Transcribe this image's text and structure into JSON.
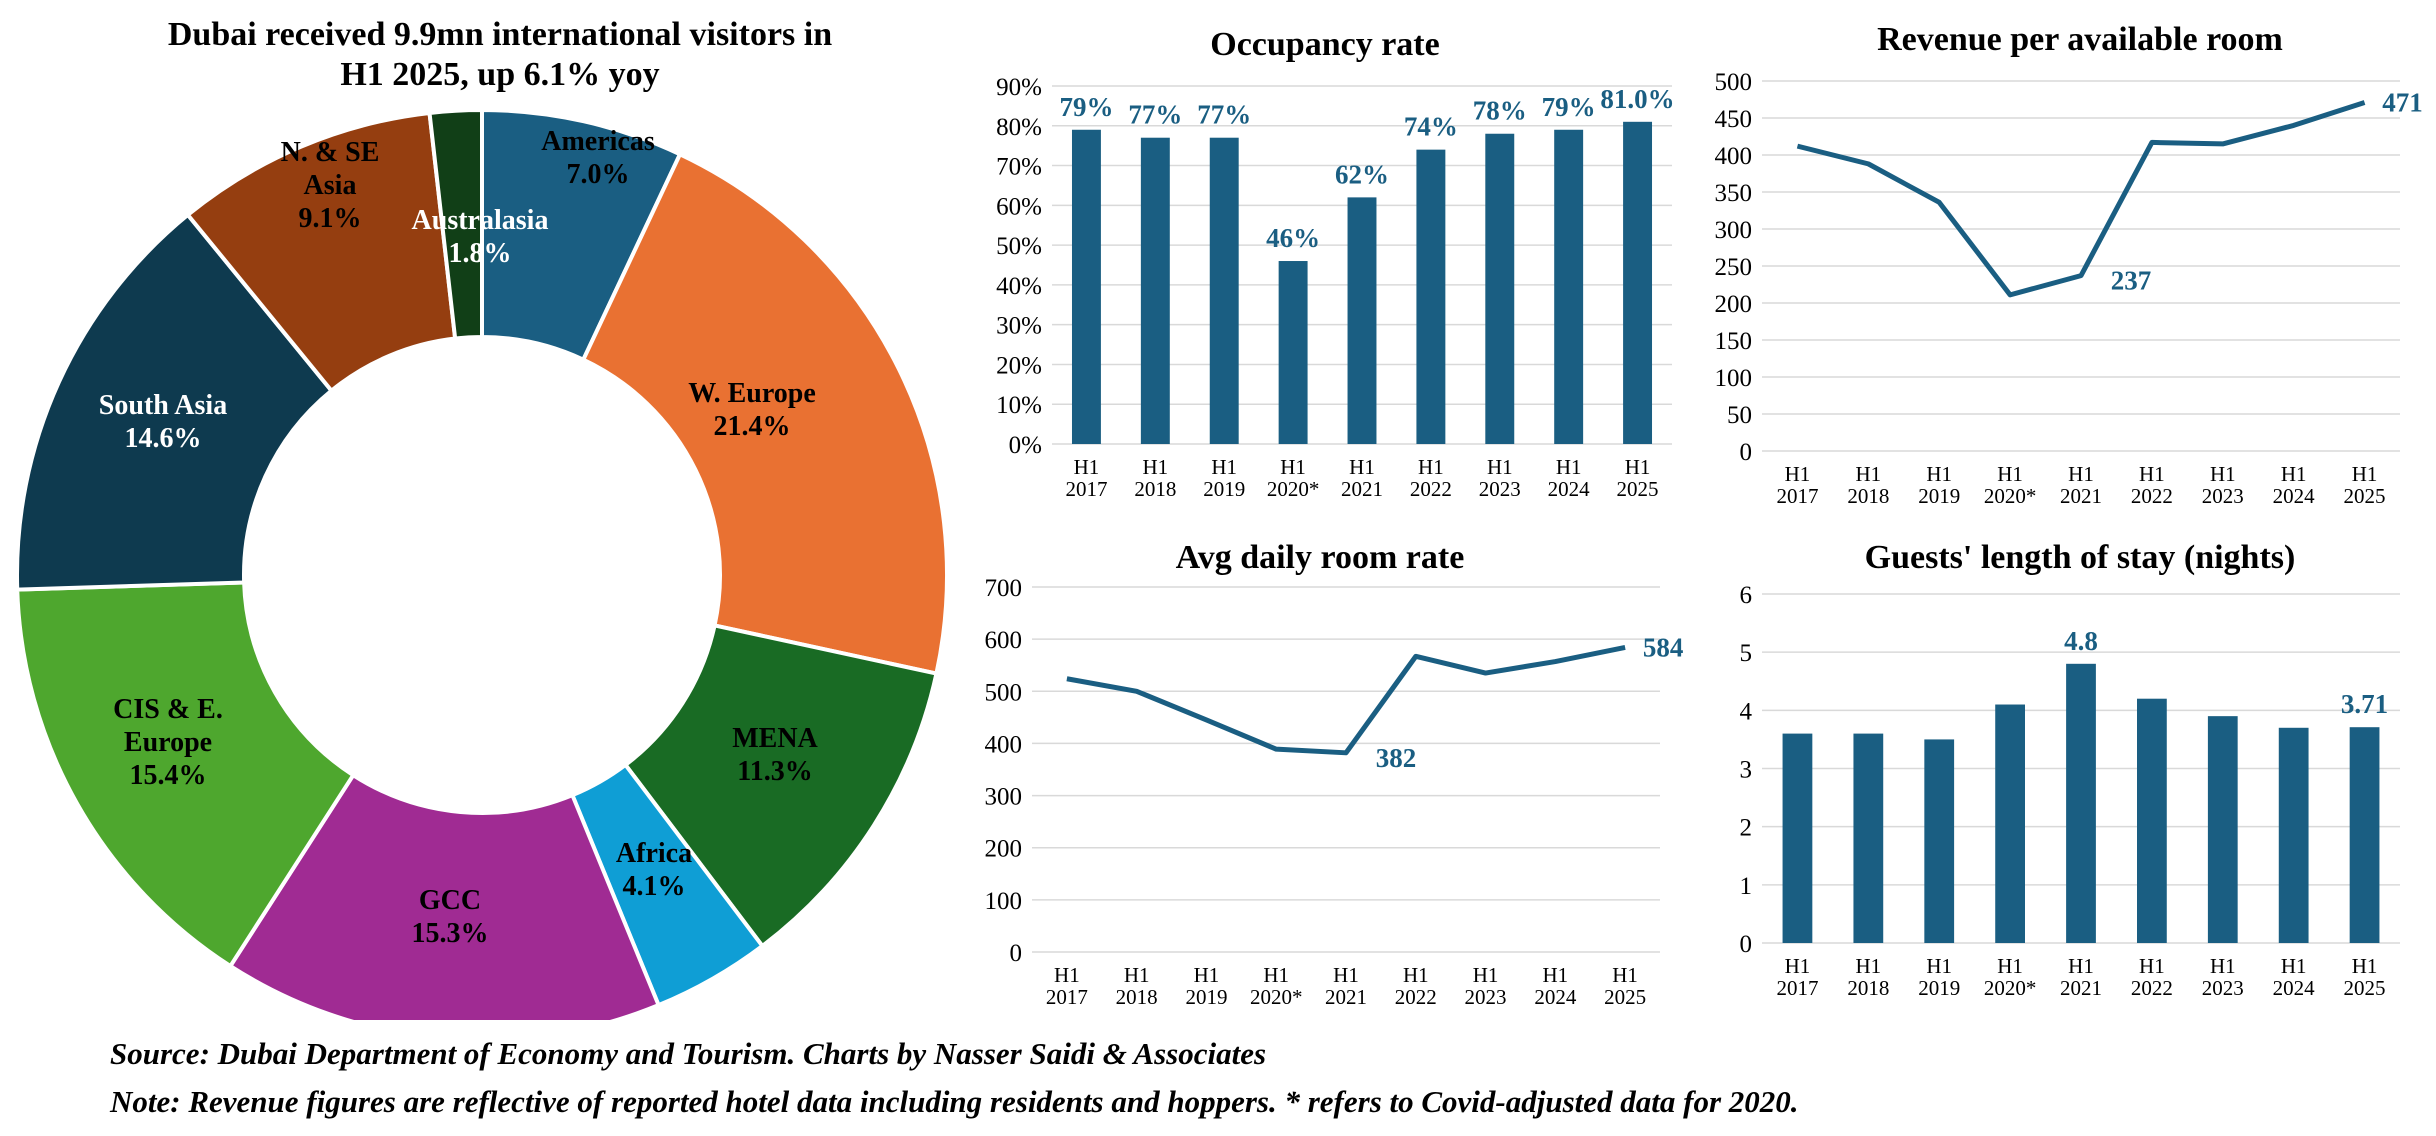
{
  "charts": [
    {
      "type": "pie",
      "title": [
        "Dubai received 9.9mn international visitors in",
        "H1 2025, up 6.1% yoy"
      ],
      "slices": [
        {
          "label": [
            "Americas",
            "7.0%"
          ],
          "value": 7.0,
          "color": "#1a5e82",
          "text_color": "#000000"
        },
        {
          "label": [
            "W. Europe",
            "21.4%"
          ],
          "value": 21.4,
          "color": "#e97132",
          "text_color": "#000000"
        },
        {
          "label": [
            "MENA",
            "11.3%"
          ],
          "value": 11.3,
          "color": "#196b24",
          "text_color": "#000000"
        },
        {
          "label": [
            "Africa",
            "4.1%"
          ],
          "value": 4.1,
          "color": "#0f9ed5",
          "text_color": "#000000"
        },
        {
          "label": [
            "GCC",
            "15.3%"
          ],
          "value": 15.3,
          "color": "#a02b93",
          "text_color": "#000000"
        },
        {
          "label": [
            "CIS & E.",
            "Europe",
            "15.4%"
          ],
          "value": 15.4,
          "color": "#4ea72e",
          "text_color": "#000000"
        },
        {
          "label": [
            "South Asia",
            "14.6%"
          ],
          "value": 14.6,
          "color": "#0e3a4f",
          "text_color": "#ffffff"
        },
        {
          "label": [
            "N. & SE",
            "Asia",
            "9.1%"
          ],
          "value": 9.1,
          "color": "#953e10",
          "text_color": "#000000"
        },
        {
          "label": [
            "Australasia",
            "1.8%"
          ],
          "value": 1.8,
          "color": "#113f17",
          "text_color": "#ffffff"
        }
      ]
    },
    {
      "type": "bar",
      "title": "Occupancy rate",
      "categories": [
        [
          "H1",
          "2017"
        ],
        [
          "H1",
          "2018"
        ],
        [
          "H1",
          "2019"
        ],
        [
          "H1",
          "2020*"
        ],
        [
          "H1",
          "2021"
        ],
        [
          "H1",
          "2022"
        ],
        [
          "H1",
          "2023"
        ],
        [
          "H1",
          "2024"
        ],
        [
          "H1",
          "2025"
        ]
      ],
      "values": [
        79,
        77,
        77,
        46,
        62,
        74,
        78,
        79,
        81.0
      ],
      "data_labels": [
        "79%",
        "77%",
        "77%",
        "46%",
        "62%",
        "74%",
        "78%",
        "79%",
        "81.0%"
      ],
      "yticks": [
        "0%",
        "10%",
        "20%",
        "30%",
        "40%",
        "50%",
        "60%",
        "70%",
        "80%",
        "90%"
      ],
      "ylim": [
        0,
        90
      ],
      "color": "#1a5e82",
      "grid": true
    },
    {
      "type": "line",
      "title": "Revenue per available room",
      "categories": [
        [
          "H1",
          "2017"
        ],
        [
          "H1",
          "2018"
        ],
        [
          "H1",
          "2019"
        ],
        [
          "H1",
          "2020*"
        ],
        [
          "H1",
          "2021"
        ],
        [
          "H1",
          "2022"
        ],
        [
          "H1",
          "2023"
        ],
        [
          "H1",
          "2024"
        ],
        [
          "H1",
          "2025"
        ]
      ],
      "values": [
        412,
        388,
        336,
        211,
        237,
        417,
        415,
        440,
        471
      ],
      "data_labels": [
        "",
        "",
        "",
        "",
        "237",
        "",
        "",
        "",
        "471"
      ],
      "yticks": [
        "0",
        "50",
        "100",
        "150",
        "200",
        "250",
        "300",
        "350",
        "400",
        "450",
        "500"
      ],
      "ylim": [
        0,
        500
      ],
      "color": "#1a5e82",
      "grid": true
    },
    {
      "type": "line",
      "title": "Avg daily room rate",
      "categories": [
        [
          "H1",
          "2017"
        ],
        [
          "H1",
          "2018"
        ],
        [
          "H1",
          "2019"
        ],
        [
          "H1",
          "2020*"
        ],
        [
          "H1",
          "2021"
        ],
        [
          "H1",
          "2022"
        ],
        [
          "H1",
          "2023"
        ],
        [
          "H1",
          "2024"
        ],
        [
          "H1",
          "2025"
        ]
      ],
      "values": [
        524,
        500,
        445,
        389,
        382,
        567,
        535,
        557,
        584
      ],
      "data_labels": [
        "",
        "",
        "",
        "",
        "382",
        "",
        "",
        "",
        "584"
      ],
      "yticks": [
        "0",
        "100",
        "200",
        "300",
        "400",
        "500",
        "600",
        "700"
      ],
      "ylim": [
        0,
        700
      ],
      "color": "#1a5e82",
      "grid": true
    },
    {
      "type": "bar",
      "title": "Guests' length of stay (nights)",
      "categories": [
        [
          "H1",
          "2017"
        ],
        [
          "H1",
          "2018"
        ],
        [
          "H1",
          "2019"
        ],
        [
          "H1",
          "2020*"
        ],
        [
          "H1",
          "2021"
        ],
        [
          "H1",
          "2022"
        ],
        [
          "H1",
          "2023"
        ],
        [
          "H1",
          "2024"
        ],
        [
          "H1",
          "2025"
        ]
      ],
      "values": [
        3.6,
        3.6,
        3.5,
        4.1,
        4.8,
        4.2,
        3.9,
        3.7,
        3.71
      ],
      "data_labels": [
        "",
        "",
        "",
        "",
        "4.8",
        "",
        "",
        "",
        "3.71"
      ],
      "yticks": [
        "0",
        "1",
        "2",
        "3",
        "4",
        "5",
        "6"
      ],
      "ylim": [
        0,
        6
      ],
      "color": "#1a5e82",
      "grid": true
    }
  ],
  "footer": {
    "source": "Source: Dubai Department of Economy and Tourism. Charts by Nasser Saidi & Associates",
    "note": "Note: Revenue figures are reflective of reported hotel data including residents and hoppers. * refers to Covid-adjusted data for 2020."
  }
}
